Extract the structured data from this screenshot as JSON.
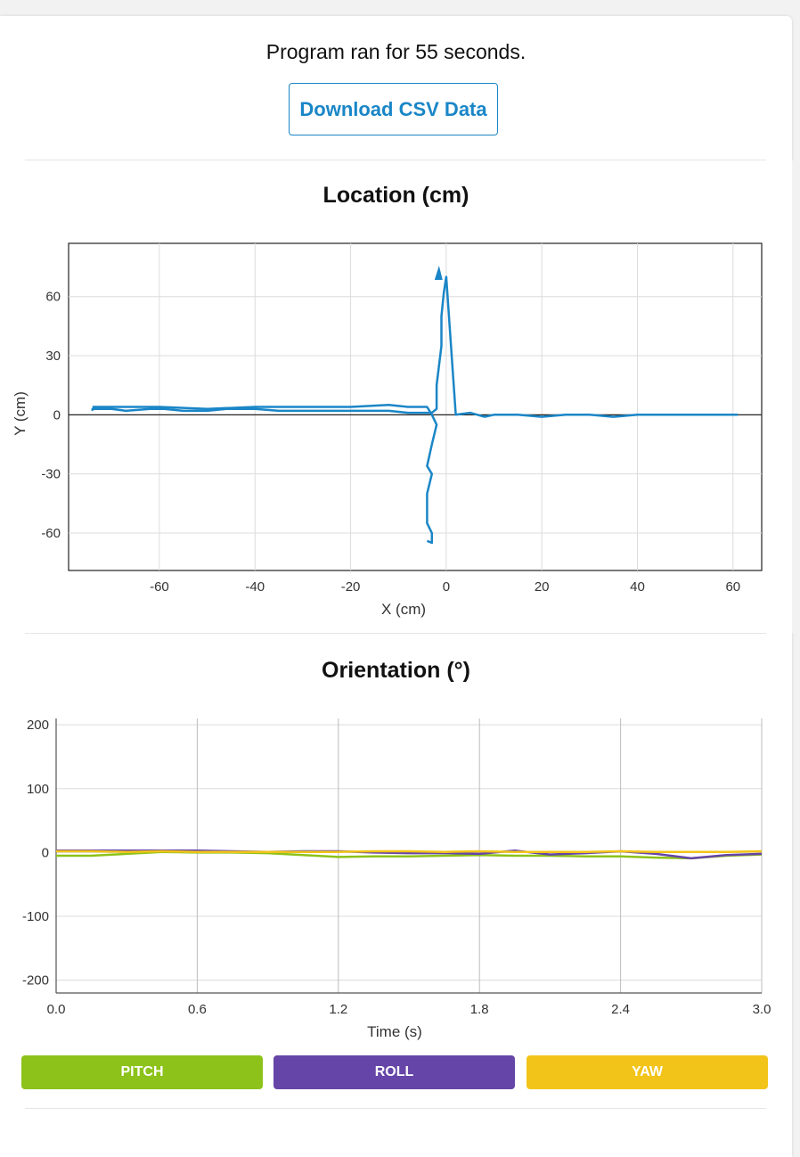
{
  "status_text": "Program ran for 55 seconds.",
  "download_label": "Download CSV Data",
  "location_chart": {
    "title": "Location (cm)",
    "xlabel": "X (cm)",
    "ylabel": "Y (cm)",
    "xticks": [
      "-60",
      "-40",
      "-20",
      "0",
      "20",
      "40",
      "60"
    ],
    "yticks": [
      "60",
      "30",
      "0",
      "-30",
      "-60"
    ]
  },
  "orientation_chart": {
    "title": "Orientation (°)",
    "xlabel": "Time (s)",
    "xticks": [
      "0.0",
      "0.6",
      "1.2",
      "1.8",
      "2.4",
      "3.0"
    ],
    "yticks": [
      "200",
      "100",
      "0",
      "-100",
      "-200"
    ]
  },
  "legend_buttons": [
    {
      "label": "PITCH",
      "color": "#8cc21a"
    },
    {
      "label": "ROLL",
      "color": "#6645a8"
    },
    {
      "label": "YAW",
      "color": "#f2c419"
    }
  ],
  "chart_data": [
    {
      "type": "line",
      "title": "Location (cm)",
      "xlabel": "X (cm)",
      "ylabel": "Y (cm)",
      "xlim": [
        -79,
        66
      ],
      "ylim": [
        -79,
        87
      ],
      "grid": true,
      "color": "#1a86c7",
      "series": [
        {
          "x": [
            -74,
            -74,
            -72,
            -70,
            -67,
            -62,
            -59,
            -55,
            -50,
            -46,
            -40,
            -35,
            -25,
            -15,
            -12,
            -8,
            -5,
            -3,
            -2,
            -2,
            -1,
            -1,
            -0.5,
            0,
            2,
            5,
            8,
            10,
            15,
            20,
            25,
            30,
            35,
            40,
            50,
            60,
            61
          ],
          "y": [
            2,
            3,
            3,
            3,
            2,
            3,
            3,
            2,
            2,
            3,
            3,
            2,
            2,
            2,
            2,
            1,
            1,
            1,
            3,
            15,
            35,
            50,
            62,
            70,
            0,
            1,
            -1,
            0,
            0,
            -1,
            0,
            0,
            -1,
            0,
            0,
            0,
            0
          ]
        },
        {
          "x": [
            -74,
            -70,
            -60,
            -50,
            -40,
            -20,
            -12,
            -8,
            -4,
            -3,
            -2,
            -3,
            -4,
            -3,
            -4,
            -4,
            -3,
            -3,
            -4
          ],
          "y": [
            4,
            4,
            4,
            3,
            4,
            4,
            5,
            4,
            4,
            0,
            -5,
            -15,
            -26,
            -30,
            -40,
            -55,
            -60,
            -65,
            -64
          ]
        }
      ]
    },
    {
      "type": "line",
      "title": "Orientation (°)",
      "xlabel": "Time (s)",
      "xlim": [
        0,
        3.0
      ],
      "ylim": [
        -220,
        210
      ],
      "grid": true,
      "x": [
        0.0,
        0.15,
        0.3,
        0.45,
        0.6,
        0.75,
        0.9,
        1.05,
        1.2,
        1.35,
        1.5,
        1.65,
        1.8,
        1.95,
        2.1,
        2.25,
        2.4,
        2.55,
        2.7,
        2.85,
        3.0
      ],
      "series": [
        {
          "name": "PITCH",
          "color": "#8cc21a",
          "values": [
            -5,
            -5,
            -2,
            1,
            0,
            0,
            -1,
            -4,
            -7,
            -6,
            -6,
            -5,
            -4,
            -5,
            -5,
            -6,
            -6,
            -8,
            -9,
            -5,
            -3
          ]
        },
        {
          "name": "ROLL",
          "color": "#6645a8",
          "values": [
            3,
            3,
            3,
            3,
            3,
            2,
            1,
            2,
            2,
            0,
            -1,
            -1,
            -2,
            3,
            -3,
            -1,
            2,
            -2,
            -9,
            -4,
            -2
          ]
        },
        {
          "name": "YAW",
          "color": "#f2c419",
          "values": [
            2,
            2,
            1,
            2,
            1,
            1,
            1,
            1,
            1,
            2,
            2,
            1,
            2,
            1,
            1,
            1,
            2,
            1,
            1,
            1,
            2
          ]
        }
      ]
    }
  ]
}
